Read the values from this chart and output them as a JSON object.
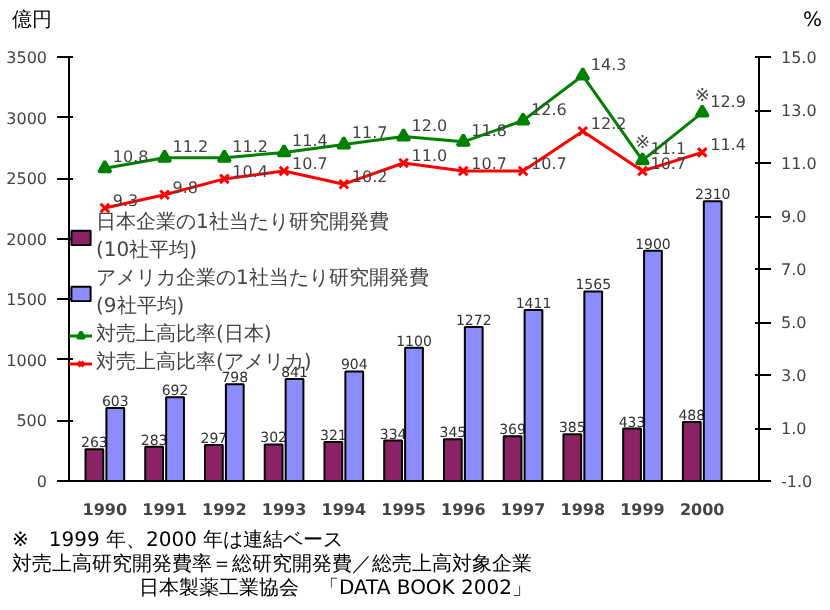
{
  "chart_data": {
    "type": "bar",
    "categories": [
      "1990",
      "1991",
      "1992",
      "1993",
      "1994",
      "1995",
      "1996",
      "1997",
      "1998",
      "1999",
      "2000"
    ],
    "ylabel": "億円",
    "y2label": "%",
    "ylim": [
      0,
      3500
    ],
    "yticks": [
      0,
      500,
      1000,
      1500,
      2000,
      2500,
      3000,
      3500
    ],
    "y2lim": [
      -1,
      15
    ],
    "y2ticks": [
      {
        "value": -1,
        "label": "-1.0"
      },
      {
        "value": 1,
        "label": "1.0"
      },
      {
        "value": 3,
        "label": "3.0"
      },
      {
        "value": 5,
        "label": "5.0"
      },
      {
        "value": 7,
        "label": "7.0"
      },
      {
        "value": 9,
        "label": "9.0"
      },
      {
        "value": 11,
        "label": "11.0"
      },
      {
        "value": 13,
        "label": "13.0"
      },
      {
        "value": 15,
        "label": "15.0"
      }
    ],
    "series": [
      {
        "name": "日本企業の1社当たり研究開発費\n(10社平均)",
        "type": "bar",
        "color": "#8b2266",
        "values": [
          263,
          283,
          297,
          302,
          321,
          334,
          345,
          369,
          385,
          433,
          488
        ]
      },
      {
        "name": "アメリカ企業の1社当たり研究開発費\n(9社平均)",
        "type": "bar",
        "color": "#8c8cff",
        "values": [
          603,
          692,
          798,
          841,
          904,
          1100,
          1272,
          1411,
          1565,
          1900,
          2310
        ]
      },
      {
        "name": "対売上高比率(日本)",
        "type": "line",
        "axis": "y2",
        "marker": "triangle",
        "color": "#008000",
        "values": [
          10.8,
          11.2,
          11.2,
          11.4,
          11.7,
          12.0,
          11.8,
          12.6,
          14.3,
          11.1,
          12.9
        ],
        "value_labels": [
          "10.8",
          "11.2",
          "11.2",
          "11.4",
          "11.7",
          "12.0",
          "11.8",
          "12.6",
          "14.3",
          "11.1",
          "12.9"
        ]
      },
      {
        "name": "対売上高比率(アメリカ)",
        "type": "line",
        "axis": "y2",
        "marker": "cross",
        "color": "#ff0000",
        "values": [
          9.3,
          9.8,
          10.4,
          10.7,
          10.2,
          11.0,
          10.7,
          10.7,
          12.2,
          10.7,
          11.4
        ],
        "value_labels": [
          "9.3",
          "9.8",
          "10.4",
          "10.7",
          "10.2",
          "11.0",
          "10.7",
          "10.7",
          "12.2",
          "10.7",
          "11.4"
        ]
      }
    ],
    "data_labels": true,
    "legend": "left",
    "annotations": [
      {
        "text": "※",
        "x": "1999",
        "y": 2700
      },
      {
        "text": "※",
        "x": "2000",
        "y": 3090
      },
      "※　1999 年、2000 年は連結ベース",
      "対売上高研究開発費率＝総研究開発費／総売上高対象企業",
      "日本製薬工業協会　「DATA BOOK 2002」"
    ]
  }
}
